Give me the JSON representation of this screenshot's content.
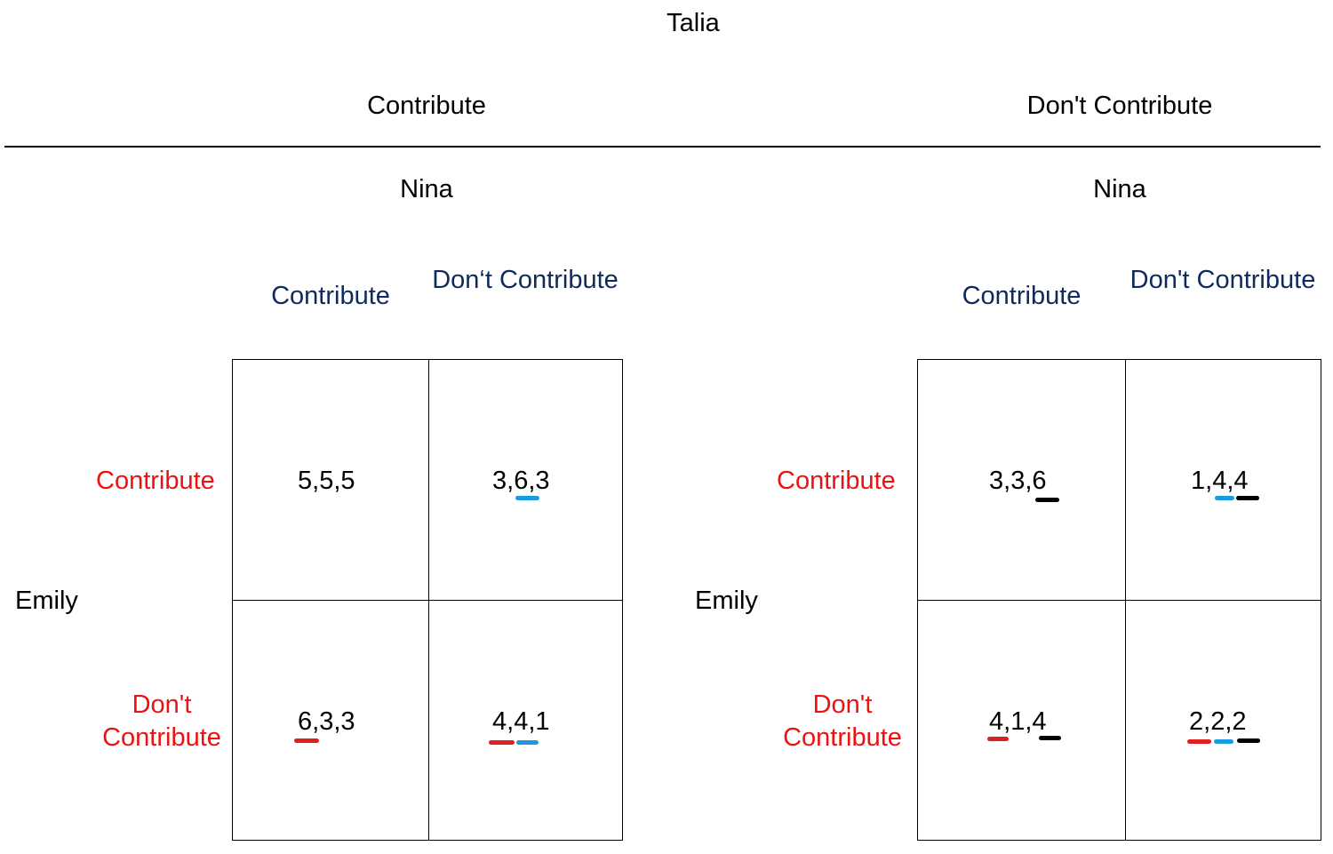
{
  "top_player": "Talia",
  "talia_strategies": {
    "left": "Contribute",
    "right": "Don't Contribute"
  },
  "left_game": {
    "column_player": "Nina",
    "column_strategies": [
      "Contribute",
      "Don‘t Contribute"
    ],
    "row_player": "Emily",
    "row_strategies": [
      "Contribute",
      "Don't Contribute"
    ],
    "cells": [
      [
        [
          "5",
          "5",
          "5"
        ],
        [
          "3",
          "6",
          "3"
        ]
      ],
      [
        [
          "6",
          "3",
          "3"
        ],
        [
          "4",
          "4",
          "1"
        ]
      ]
    ]
  },
  "right_game": {
    "column_player": "Nina",
    "column_strategies": [
      "Contribute",
      "Don't Contribute"
    ],
    "row_player": "Emily",
    "row_strategies": [
      "Contribute",
      "Don't Contribute"
    ],
    "cells": [
      [
        [
          "3",
          "3",
          "6"
        ],
        [
          "1",
          "4",
          "4"
        ]
      ],
      [
        [
          "4",
          "1",
          "4"
        ],
        [
          "2",
          "2",
          "2"
        ]
      ]
    ]
  },
  "best_response_colors": {
    "emily": "#e02020",
    "nina": "#1a9be0",
    "talia": "#000000"
  }
}
